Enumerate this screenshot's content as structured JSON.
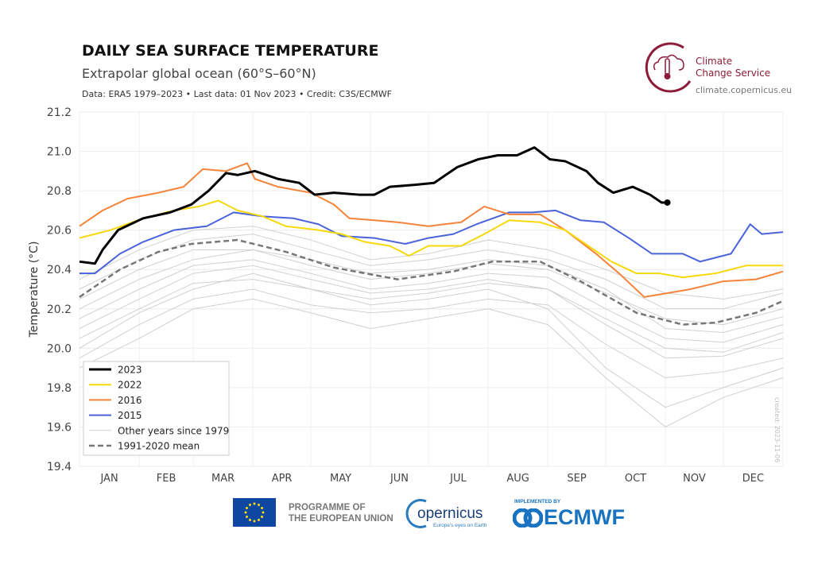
{
  "header": {
    "title": "DAILY SEA SURFACE TEMPERATURE",
    "subtitle": "Extrapolar global ocean (60°S–60°N)",
    "info": "Data: ERA5 1979–2023 • Last data: 01 Nov 2023 • Credit: C3S/ECMWF"
  },
  "logo": {
    "line1": "Climate",
    "line2": "Change Service",
    "url": "climate.copernicus.eu",
    "color": "#8c1c3a"
  },
  "footer": {
    "eu_line1": "PROGRAMME OF",
    "eu_line2": "THE EUROPEAN UNION",
    "copernicus": "opernicus",
    "copernicus_tag": "Europe's eyes on Earth",
    "implemented": "IMPLEMENTED BY",
    "ecmwf": "ECMWF"
  },
  "created": "created: 2023-11-06",
  "chart_data": {
    "type": "line",
    "title": "DAILY SEA SURFACE TEMPERATURE",
    "xlabel": "",
    "ylabel": "Temperature (°C)",
    "ylim": [
      19.4,
      21.2
    ],
    "yticks": [
      "19.4",
      "19.6",
      "19.8",
      "20.0",
      "20.2",
      "20.4",
      "20.6",
      "20.8",
      "21.0",
      "21.2"
    ],
    "xlim": [
      0,
      365
    ],
    "months": [
      "JAN",
      "FEB",
      "MAR",
      "APR",
      "MAY",
      "JUN",
      "JUL",
      "AUG",
      "SEP",
      "OCT",
      "NOV",
      "DEC"
    ],
    "grid": true,
    "legend_position": "bottom-left",
    "series": [
      {
        "name": "2023",
        "color": "#000000",
        "width": 3,
        "points": [
          [
            0,
            20.44
          ],
          [
            8,
            20.43
          ],
          [
            12,
            20.5
          ],
          [
            20,
            20.6
          ],
          [
            33,
            20.66
          ],
          [
            47,
            20.69
          ],
          [
            58,
            20.73
          ],
          [
            67,
            20.8
          ],
          [
            76,
            20.89
          ],
          [
            82,
            20.88
          ],
          [
            91,
            20.9
          ],
          [
            103,
            20.86
          ],
          [
            114,
            20.84
          ],
          [
            122,
            20.78
          ],
          [
            132,
            20.79
          ],
          [
            145,
            20.78
          ],
          [
            153,
            20.78
          ],
          [
            161,
            20.82
          ],
          [
            174,
            20.83
          ],
          [
            184,
            20.84
          ],
          [
            190,
            20.88
          ],
          [
            196,
            20.92
          ],
          [
            207,
            20.96
          ],
          [
            217,
            20.98
          ],
          [
            227,
            20.98
          ],
          [
            236,
            21.02
          ],
          [
            244,
            20.96
          ],
          [
            252,
            20.95
          ],
          [
            263,
            20.9
          ],
          [
            269,
            20.84
          ],
          [
            277,
            20.79
          ],
          [
            287,
            20.82
          ],
          [
            296,
            20.78
          ],
          [
            302,
            20.74
          ],
          [
            305,
            20.74
          ]
        ]
      },
      {
        "name": "2022",
        "color": "#f5d90a",
        "width": 2,
        "points": [
          [
            0,
            20.56
          ],
          [
            16,
            20.6
          ],
          [
            33,
            20.66
          ],
          [
            49,
            20.7
          ],
          [
            62,
            20.72
          ],
          [
            72,
            20.75
          ],
          [
            82,
            20.7
          ],
          [
            95,
            20.67
          ],
          [
            107,
            20.62
          ],
          [
            124,
            20.6
          ],
          [
            136,
            20.58
          ],
          [
            148,
            20.54
          ],
          [
            161,
            20.52
          ],
          [
            171,
            20.47
          ],
          [
            181,
            20.52
          ],
          [
            198,
            20.52
          ],
          [
            210,
            20.58
          ],
          [
            223,
            20.65
          ],
          [
            239,
            20.64
          ],
          [
            252,
            20.6
          ],
          [
            264,
            20.52
          ],
          [
            276,
            20.44
          ],
          [
            289,
            20.38
          ],
          [
            301,
            20.38
          ],
          [
            313,
            20.36
          ],
          [
            330,
            20.38
          ],
          [
            346,
            20.42
          ],
          [
            365,
            20.42
          ]
        ]
      },
      {
        "name": "2016",
        "color": "#f5843a",
        "width": 2,
        "points": [
          [
            0,
            20.62
          ],
          [
            12,
            20.7
          ],
          [
            25,
            20.76
          ],
          [
            41,
            20.79
          ],
          [
            54,
            20.82
          ],
          [
            64,
            20.91
          ],
          [
            76,
            20.9
          ],
          [
            87,
            20.94
          ],
          [
            91,
            20.86
          ],
          [
            103,
            20.82
          ],
          [
            120,
            20.79
          ],
          [
            132,
            20.73
          ],
          [
            140,
            20.66
          ],
          [
            153,
            20.65
          ],
          [
            165,
            20.64
          ],
          [
            181,
            20.62
          ],
          [
            198,
            20.64
          ],
          [
            210,
            20.72
          ],
          [
            223,
            20.68
          ],
          [
            239,
            20.68
          ],
          [
            252,
            20.6
          ],
          [
            268,
            20.48
          ],
          [
            280,
            20.38
          ],
          [
            293,
            20.26
          ],
          [
            305,
            20.28
          ],
          [
            317,
            20.3
          ],
          [
            334,
            20.34
          ],
          [
            351,
            20.35
          ],
          [
            365,
            20.39
          ]
        ]
      },
      {
        "name": "2015",
        "color": "#4a63d8",
        "width": 2,
        "points": [
          [
            0,
            20.38
          ],
          [
            8,
            20.38
          ],
          [
            21,
            20.48
          ],
          [
            33,
            20.54
          ],
          [
            49,
            20.6
          ],
          [
            66,
            20.62
          ],
          [
            80,
            20.69
          ],
          [
            95,
            20.67
          ],
          [
            111,
            20.66
          ],
          [
            124,
            20.63
          ],
          [
            136,
            20.57
          ],
          [
            153,
            20.56
          ],
          [
            169,
            20.53
          ],
          [
            181,
            20.56
          ],
          [
            194,
            20.58
          ],
          [
            206,
            20.63
          ],
          [
            223,
            20.69
          ],
          [
            235,
            20.69
          ],
          [
            247,
            20.7
          ],
          [
            260,
            20.65
          ],
          [
            272,
            20.64
          ],
          [
            285,
            20.56
          ],
          [
            297,
            20.48
          ],
          [
            313,
            20.48
          ],
          [
            322,
            20.44
          ],
          [
            338,
            20.48
          ],
          [
            348,
            20.63
          ],
          [
            354,
            20.58
          ],
          [
            365,
            20.59
          ]
        ]
      },
      {
        "name": "1991-2020 mean",
        "color": "#777777",
        "width": 2.5,
        "dash": true,
        "points": [
          [
            0,
            20.26
          ],
          [
            21,
            20.4
          ],
          [
            41,
            20.49
          ],
          [
            58,
            20.53
          ],
          [
            82,
            20.55
          ],
          [
            107,
            20.49
          ],
          [
            132,
            20.41
          ],
          [
            165,
            20.35
          ],
          [
            194,
            20.39
          ],
          [
            214,
            20.44
          ],
          [
            239,
            20.44
          ],
          [
            260,
            20.34
          ],
          [
            289,
            20.18
          ],
          [
            313,
            20.12
          ],
          [
            330,
            20.13
          ],
          [
            351,
            20.18
          ],
          [
            365,
            20.24
          ]
        ]
      }
    ],
    "other_years": {
      "name": "Other years since 1979",
      "color": "#d0d0d0",
      "days": [
        0,
        31,
        59,
        90,
        120,
        151,
        181,
        212,
        243,
        273,
        304,
        334,
        365
      ],
      "values": [
        [
          20.15,
          20.3,
          20.42,
          20.45,
          20.38,
          20.3,
          20.33,
          20.38,
          20.36,
          20.2,
          20.05,
          20.03,
          20.12
        ],
        [
          20.05,
          20.2,
          20.33,
          20.35,
          20.3,
          20.25,
          20.28,
          20.33,
          20.3,
          20.12,
          19.95,
          19.96,
          20.05
        ],
        [
          20.25,
          20.4,
          20.5,
          20.5,
          20.42,
          20.35,
          20.38,
          20.43,
          20.4,
          20.28,
          20.15,
          20.12,
          20.2
        ],
        [
          19.95,
          20.12,
          20.25,
          20.3,
          20.22,
          20.18,
          20.2,
          20.25,
          20.22,
          20.02,
          19.85,
          19.88,
          19.95
        ],
        [
          20.3,
          20.45,
          20.55,
          20.58,
          20.5,
          20.42,
          20.45,
          20.5,
          20.45,
          20.35,
          20.2,
          20.2,
          20.28
        ],
        [
          20.0,
          20.18,
          20.3,
          20.38,
          20.3,
          20.22,
          20.25,
          20.3,
          20.2,
          19.9,
          19.7,
          19.8,
          19.9
        ],
        [
          20.1,
          20.25,
          20.38,
          20.42,
          20.35,
          20.28,
          20.3,
          20.35,
          20.3,
          20.15,
          20.0,
          19.98,
          20.08
        ],
        [
          20.35,
          20.5,
          20.6,
          20.62,
          20.55,
          20.45,
          20.48,
          20.55,
          20.5,
          20.4,
          20.28,
          20.25,
          20.3
        ],
        [
          19.9,
          20.05,
          20.2,
          20.25,
          20.18,
          20.1,
          20.15,
          20.2,
          20.12,
          19.85,
          19.6,
          19.75,
          19.85
        ],
        [
          20.2,
          20.35,
          20.45,
          20.5,
          20.45,
          20.38,
          20.4,
          20.45,
          20.42,
          20.3,
          20.1,
          20.08,
          20.16
        ]
      ]
    }
  }
}
